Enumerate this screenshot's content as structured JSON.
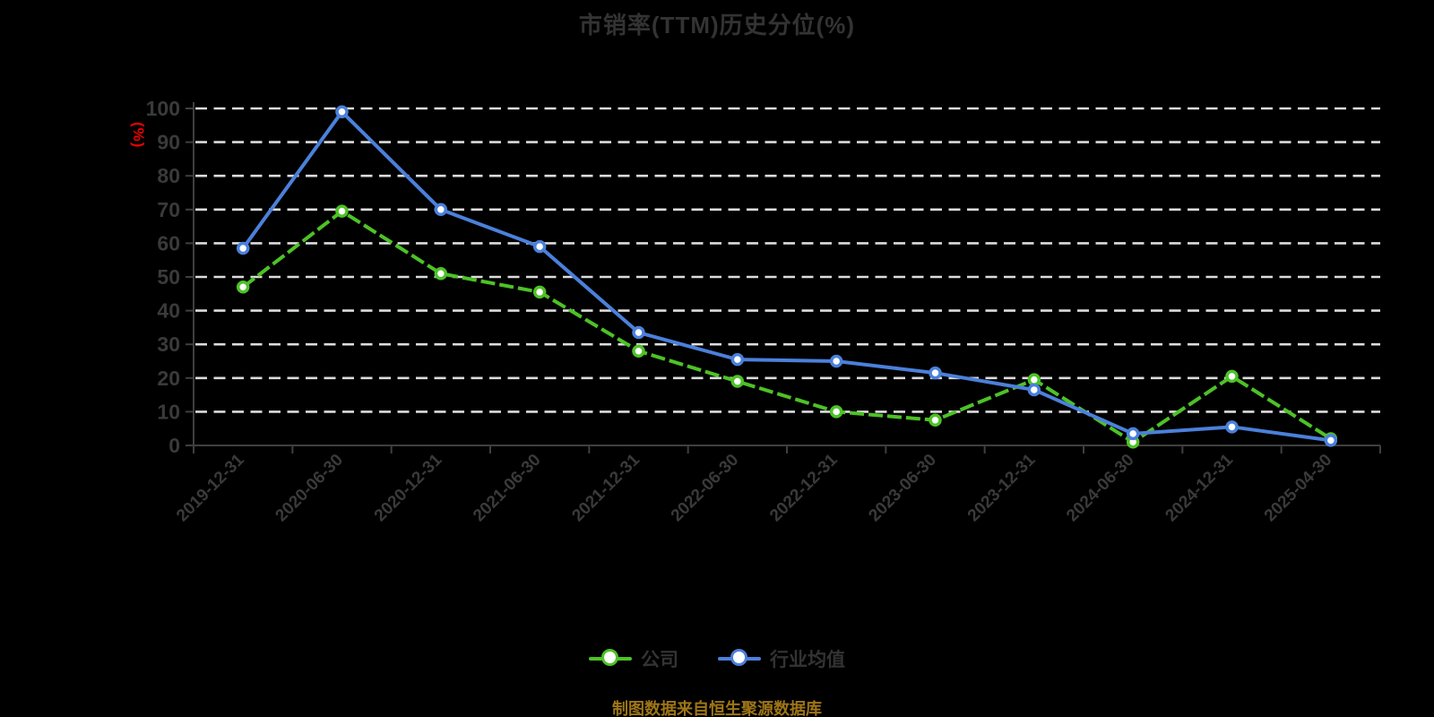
{
  "title": "市销率(TTM)历史分位(%)",
  "y_axis_unit": "(%)",
  "caption": "制图数据来自恒生聚源数据库",
  "legend": {
    "items": [
      {
        "label": "公司",
        "color": "#4DC226"
      },
      {
        "label": "行业均值",
        "color": "#4B80DB"
      }
    ]
  },
  "colors": {
    "background": "#000000",
    "title_text": "#333333",
    "axis_text": "#3A3A3A",
    "axis_line": "#3F3F3F",
    "gridline": "#DCDCDC",
    "unit_label": "#EC0000",
    "caption_text": "#9E7517",
    "company_green": "#4DC226",
    "industry_blue": "#4B80DB",
    "marker_fill": "#FFFFFF"
  },
  "chart_data": {
    "type": "line",
    "title": "市销率(TTM)历史分位(%)",
    "ylabel": "(%)",
    "xlabel": "",
    "ylim": [
      0,
      100
    ],
    "y_ticks": [
      0,
      10,
      20,
      30,
      40,
      50,
      60,
      70,
      80,
      90,
      100
    ],
    "grid": true,
    "grid_style": "dashed",
    "legend_position": "bottom",
    "x_label_rotation": -45,
    "categories": [
      "2019-12-31",
      "2020-06-30",
      "2020-12-31",
      "2021-06-30",
      "2021-12-31",
      "2022-06-30",
      "2022-12-31",
      "2023-06-30",
      "2023-12-31",
      "2024-06-30",
      "2024-12-31",
      "2025-04-30"
    ],
    "series": [
      {
        "name": "公司",
        "color": "#4DC226",
        "line_style": "dashed",
        "marker": "circle-white-fill",
        "values": [
          47,
          69.5,
          51,
          45.5,
          28,
          19,
          10,
          7.5,
          19.5,
          1,
          20.5,
          2
        ]
      },
      {
        "name": "行业均值",
        "color": "#4B80DB",
        "line_style": "solid",
        "marker": "circle-white-fill",
        "values": [
          58.5,
          99,
          70,
          59,
          33.5,
          25.5,
          25,
          21.5,
          16.5,
          3.5,
          5.5,
          1.5
        ]
      }
    ]
  }
}
